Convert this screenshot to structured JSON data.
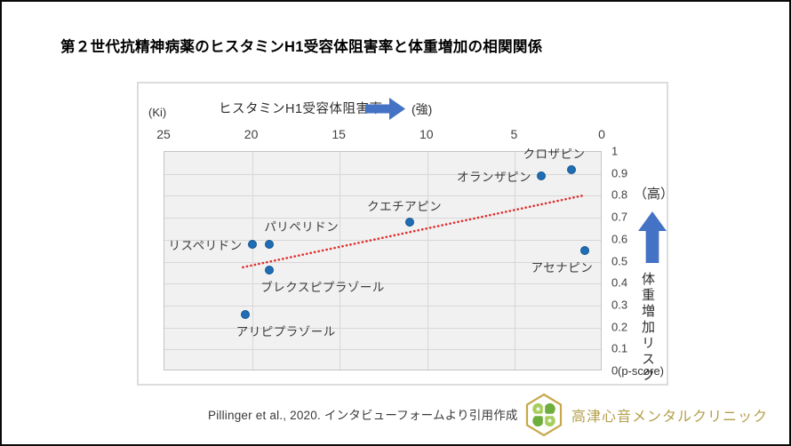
{
  "page": {
    "title": "第２世代抗精神病薬のヒスタミンH1受容体阻害率と体重増加の相関関係"
  },
  "chart_data": {
    "type": "scatter",
    "x_axis": {
      "unit_label": "(Ki)",
      "title": "ヒスタミンH1受容体阻害率",
      "direction_label": "(強)",
      "ticks": [
        25,
        20,
        15,
        10,
        5,
        0
      ],
      "range": [
        25,
        0
      ],
      "reversed": true,
      "position": "top"
    },
    "y_axis": {
      "ticks": [
        1,
        0.9,
        0.8,
        0.7,
        0.6,
        0.5,
        0.4,
        0.3,
        0.2,
        0.1,
        0
      ],
      "range": [
        0,
        1
      ],
      "unit_label": "(p-score)",
      "high_label": "（高）",
      "title": "体重増加リスク",
      "position": "right"
    },
    "grid": true,
    "points": [
      {
        "name": "クロザピン",
        "ki": 1.8,
        "p_score": 0.92,
        "label_pos": "above-end"
      },
      {
        "name": "オランザピン",
        "ki": 3.5,
        "p_score": 0.89,
        "label_pos": "left"
      },
      {
        "name": "クエチアピン",
        "ki": 11,
        "p_score": 0.68,
        "label_pos": "above-left"
      },
      {
        "name": "リスペリドン",
        "ki": 20,
        "p_score": 0.58,
        "label_pos": "left"
      },
      {
        "name": "パリペリドン",
        "ki": 19,
        "p_score": 0.58,
        "label_pos": "above"
      },
      {
        "name": "ブレクスピプラゾール",
        "ki": 19,
        "p_score": 0.46,
        "label_pos": "below"
      },
      {
        "name": "アリピプラゾール",
        "ki": 20.4,
        "p_score": 0.26,
        "label_pos": "below"
      },
      {
        "name": "アセナピン",
        "ki": 1,
        "p_score": 0.55,
        "label_pos": "below-left"
      }
    ],
    "trendline": {
      "style": "dotted",
      "color": "#de3030",
      "from": {
        "ki": 20.5,
        "p_score": 0.47
      },
      "to": {
        "ki": 1.0,
        "p_score": 0.8
      }
    },
    "colors": {
      "point_fill": "#1e6db5",
      "point_border": "#17568f",
      "arrow_blue": "#4472C4",
      "plot_background": "#f1f1f1"
    }
  },
  "footer": {
    "citation": "Pillinger et al., 2020. インタビューフォームより引用作成",
    "clinic_name": "高津心音メンタルクリニック",
    "clinic_color": "#b3a04e",
    "logo_gold": "#c8a84b",
    "logo_green_light": "#a7cd5d",
    "logo_green_dark": "#6fae3c"
  }
}
